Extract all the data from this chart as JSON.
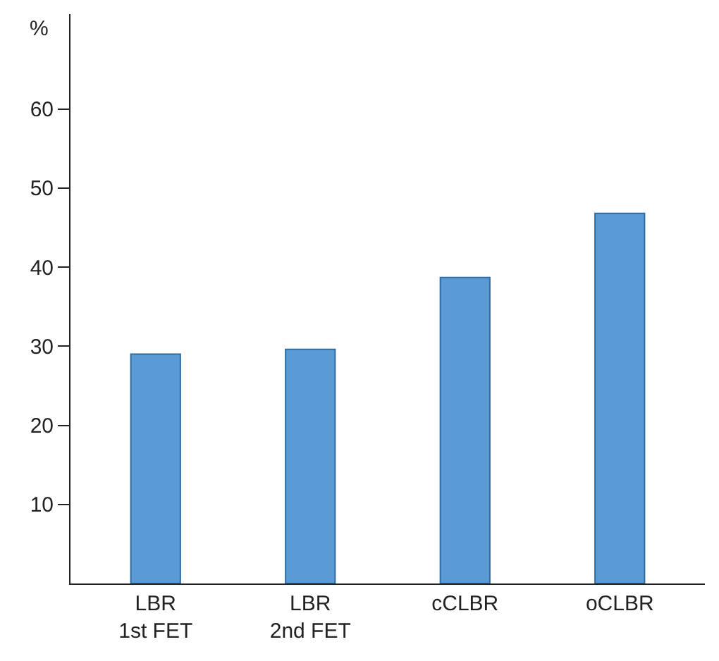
{
  "chart_data": {
    "type": "bar",
    "ylabel": "%",
    "categories": [
      "LBR\n1st FET",
      "LBR\n2nd FET",
      "cCLBR",
      "oCLBR"
    ],
    "values": [
      29,
      29.6,
      38.7,
      46.8
    ],
    "color": "#5b9bd5",
    "ylim": [
      0,
      72
    ],
    "yticks": [
      10,
      20,
      30,
      40,
      50,
      60
    ]
  }
}
